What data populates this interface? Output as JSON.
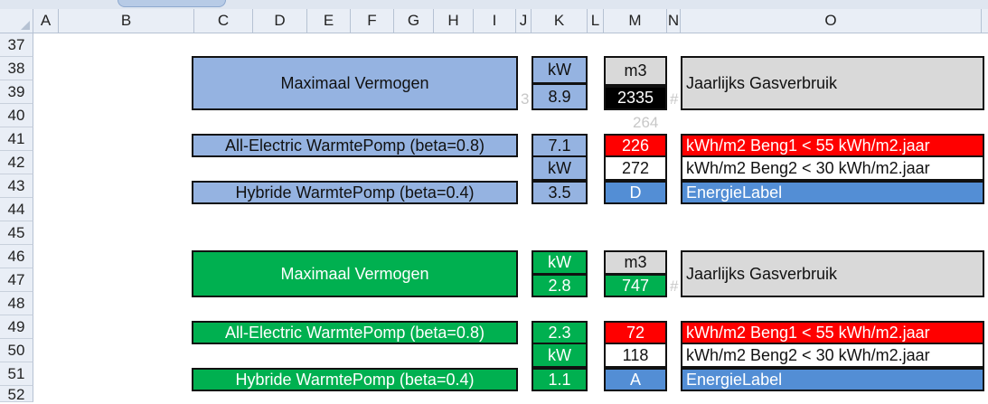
{
  "columns": [
    "A",
    "B",
    "C",
    "D",
    "E",
    "F",
    "G",
    "H",
    "I",
    "J",
    "K",
    "L",
    "M",
    "N",
    "O"
  ],
  "rows": [
    "37",
    "38",
    "39",
    "40",
    "41",
    "42",
    "43",
    "44",
    "45",
    "46",
    "47",
    "48",
    "49",
    "50",
    "51",
    "52"
  ],
  "blue_block": {
    "max_vermogen": "Maximaal Vermogen",
    "unit_kw": "kW",
    "kw_value": "8.9",
    "unit_m3": "m3",
    "m3_value": "2335",
    "gas_label": "Jaarlijks Gasverbruik",
    "overflow_3": "3",
    "overflow_hash": "#",
    "faint_264": "264",
    "all_electric": "All-Electric WarmtePomp (beta=0.8)",
    "ae_value": "7.1",
    "ae_kwh": "226",
    "beng1_text": "kWh/m2   Beng1 < 55 kWh/m2.jaar",
    "mid_kw": "kW",
    "beng2_value": "272",
    "beng2_text": "kWh/m2   Beng2 < 30 kWh/m2.jaar",
    "hybride": "Hybride WarmtePomp (beta=0.4)",
    "hyb_value": "3.5",
    "label_value": "D",
    "label_text": "EnergieLabel"
  },
  "green_block": {
    "max_vermogen": "Maximaal Vermogen",
    "unit_kw": "kW",
    "kw_value": "2.8",
    "unit_m3": "m3",
    "m3_value": "747",
    "gas_label": "Jaarlijks Gasverbruik",
    "overflow_hash": "#",
    "all_electric": "All-Electric WarmtePomp (beta=0.8)",
    "ae_value": "2.3",
    "ae_kwh": "72",
    "beng1_text": "kWh/m2   Beng1 < 55 kWh/m2.jaar",
    "mid_kw": "kW",
    "beng2_value": "118",
    "beng2_text": "kWh/m2   Beng2 < 30 kWh/m2.jaar",
    "hybride": "Hybride WarmtePomp (beta=0.4)",
    "hyb_value": "1.1",
    "label_value": "A",
    "label_text": "EnergieLabel"
  }
}
